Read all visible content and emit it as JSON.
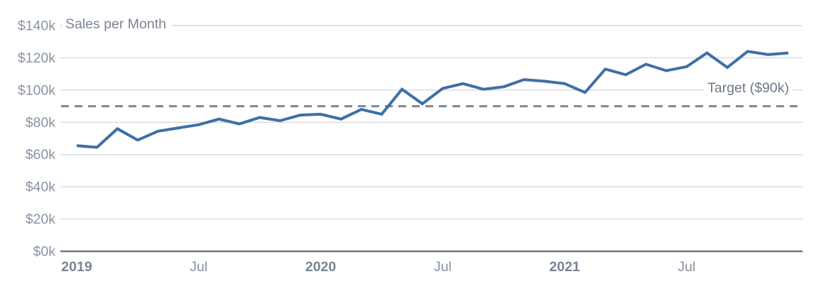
{
  "chart_data": {
    "type": "line",
    "title": "Sales per Month",
    "y_unit": "USD thousands",
    "ylim": [
      0,
      140
    ],
    "grid": true,
    "legend": "none",
    "x": [
      "Jan 2019",
      "Feb 2019",
      "Mar 2019",
      "Apr 2019",
      "May 2019",
      "Jun 2019",
      "Jul 2019",
      "Aug 2019",
      "Sep 2019",
      "Oct 2019",
      "Nov 2019",
      "Dec 2019",
      "Jan 2020",
      "Feb 2020",
      "Mar 2020",
      "Apr 2020",
      "May 2020",
      "Jun 2020",
      "Jul 2020",
      "Aug 2020",
      "Sep 2020",
      "Oct 2020",
      "Nov 2020",
      "Dec 2020",
      "Jan 2021",
      "Feb 2021",
      "Mar 2021",
      "Apr 2021",
      "May 2021",
      "Jun 2021",
      "Jul 2021",
      "Aug 2021",
      "Sep 2021",
      "Oct 2021",
      "Nov 2021",
      "Dec 2021"
    ],
    "series": [
      {
        "name": "Sales per Month",
        "values_k": [
          65.5,
          64.5,
          76,
          69,
          74.5,
          76.5,
          78.5,
          82,
          79,
          83,
          81,
          84.5,
          85,
          82,
          88,
          85,
          100.5,
          91.5,
          101,
          104,
          100.5,
          102,
          106.5,
          105.5,
          104,
          98.5,
          113,
          109.5,
          116,
          112,
          114.5,
          123,
          114,
          124,
          122,
          123
        ]
      }
    ],
    "target_line": {
      "label": "Target ($90k)",
      "value_k": 90,
      "style": "dashed"
    },
    "y_ticks": [
      {
        "value_k": 0,
        "label": "$0k"
      },
      {
        "value_k": 20,
        "label": "$20k"
      },
      {
        "value_k": 40,
        "label": "$40k"
      },
      {
        "value_k": 60,
        "label": "$60k"
      },
      {
        "value_k": 80,
        "label": "$80k"
      },
      {
        "value_k": 100,
        "label": "$100k"
      },
      {
        "value_k": 120,
        "label": "$120k"
      },
      {
        "value_k": 140,
        "label": "$140k"
      }
    ],
    "x_ticks": [
      {
        "month_index": 0,
        "label": "2019",
        "bold": true
      },
      {
        "month_index": 6,
        "label": "Jul",
        "bold": false
      },
      {
        "month_index": 12,
        "label": "2020",
        "bold": true
      },
      {
        "month_index": 18,
        "label": "Jul",
        "bold": false
      },
      {
        "month_index": 24,
        "label": "2021",
        "bold": true
      },
      {
        "month_index": 30,
        "label": "Jul",
        "bold": false
      }
    ],
    "colors": {
      "line": "#3e6fa6",
      "grid": "#d9dce3",
      "axis": "#6e7787",
      "dashed": "#7d8797",
      "tick_label": "#8a93a4",
      "year_label": "#7b8494",
      "title": "#7b8494",
      "target_label": "#6e7888",
      "background": "#ffffff"
    }
  }
}
